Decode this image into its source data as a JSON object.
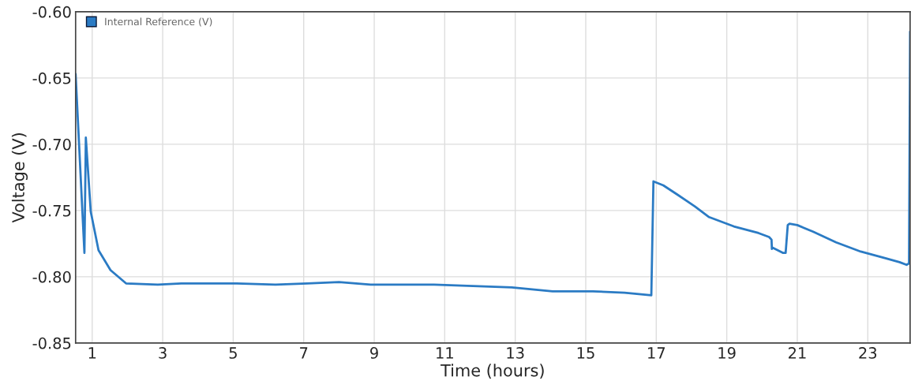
{
  "chart_data": {
    "type": "line",
    "xlabel": "Time (hours)",
    "ylabel": "Voltage (V)",
    "xlim": [
      0.53,
      24.2
    ],
    "xticks": [
      1,
      3,
      5,
      7,
      9,
      11,
      13,
      15,
      17,
      19,
      21,
      23
    ],
    "ylim": [
      -0.85,
      -0.6
    ],
    "yticks": [
      {
        "value": -0.85,
        "label": "-0.85"
      },
      {
        "value": -0.8,
        "label": "-0.80"
      },
      {
        "value": -0.75,
        "label": "-0.75"
      },
      {
        "value": -0.7,
        "label": "-0.70"
      },
      {
        "value": -0.65,
        "label": "-0.65"
      },
      {
        "value": -0.6,
        "label": "-0.60"
      }
    ],
    "grid": true,
    "legend": "top left",
    "marker": "none",
    "line_style": "solid",
    "series": [
      {
        "name": "Internal Reference (V)",
        "color": "#2b7bc4",
        "x": [
          0.53,
          0.78,
          0.82,
          0.96,
          1.18,
          1.52,
          1.96,
          2.86,
          3.53,
          5.1,
          6.2,
          7.1,
          8.0,
          8.9,
          10.7,
          11.8,
          12.9,
          14.06,
          15.2,
          16.1,
          16.86,
          16.92,
          17.2,
          17.6,
          18.1,
          18.5,
          19.2,
          19.9,
          20.2,
          20.27,
          20.28,
          20.3,
          20.6,
          20.67,
          20.73,
          20.78,
          21.0,
          21.45,
          22.1,
          22.8,
          23.5,
          23.9,
          24.1,
          24.17,
          24.2
        ],
        "values": [
          -0.647,
          -0.782,
          -0.695,
          -0.751,
          -0.78,
          -0.795,
          -0.805,
          -0.806,
          -0.805,
          -0.805,
          -0.806,
          -0.805,
          -0.804,
          -0.806,
          -0.806,
          -0.807,
          -0.808,
          -0.811,
          -0.811,
          -0.812,
          -0.814,
          -0.728,
          -0.731,
          -0.738,
          -0.747,
          -0.755,
          -0.762,
          -0.767,
          -0.77,
          -0.772,
          -0.779,
          -0.778,
          -0.782,
          -0.782,
          -0.761,
          -0.76,
          -0.761,
          -0.766,
          -0.774,
          -0.781,
          -0.786,
          -0.789,
          -0.791,
          -0.79,
          -0.615
        ]
      }
    ]
  }
}
